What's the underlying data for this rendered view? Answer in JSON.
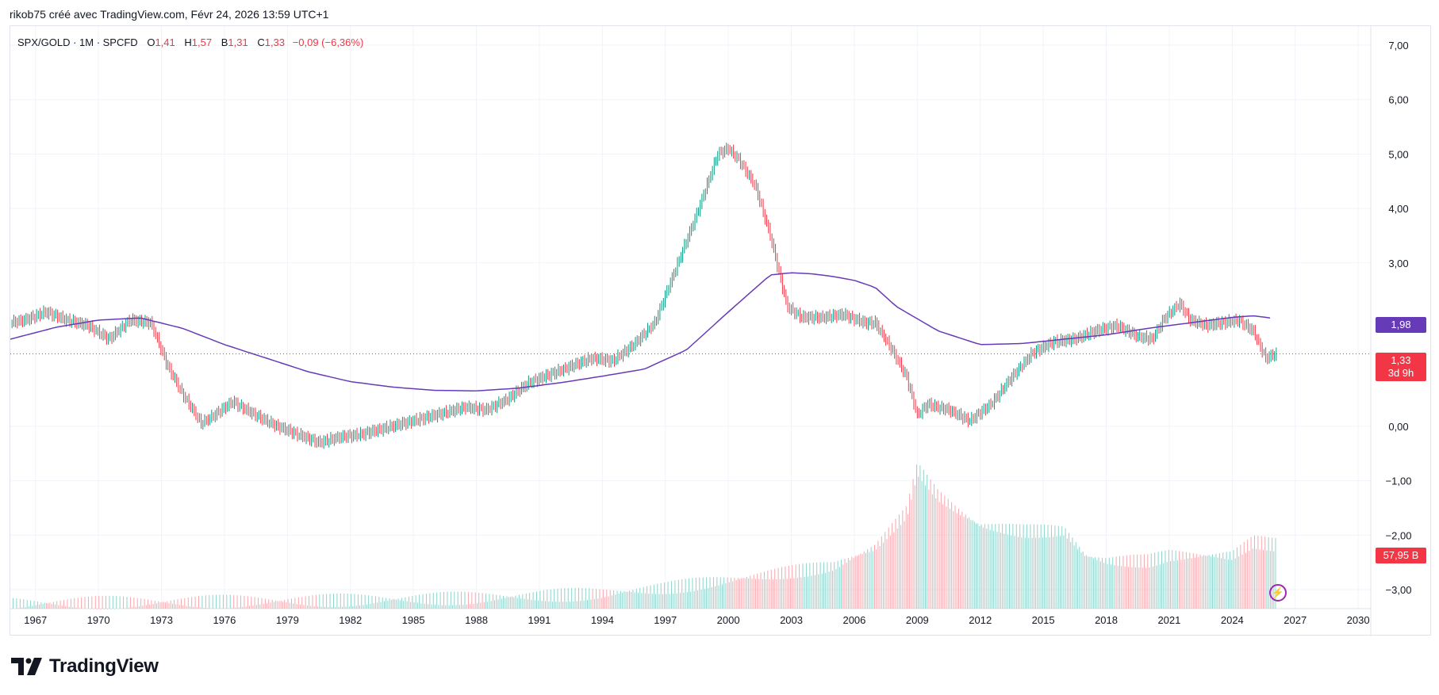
{
  "header": {
    "attribution": "rikob75 créé avec TradingView.com, Févr 24, 2026 13:59 UTC+1"
  },
  "legend": {
    "symbol": "SPX/GOLD · 1M · SPCFD",
    "o_label": "O",
    "o_value": "1,41",
    "h_label": "H",
    "h_value": "1,57",
    "l_label": "B",
    "l_value": "1,31",
    "c_label": "C",
    "c_value": "1,33",
    "change": "−0,09 (−6,36%)"
  },
  "tags": {
    "ma_value": "1,98",
    "price_value": "1,33",
    "countdown": "3d 9h",
    "volume_value": "57,95 B"
  },
  "brand": {
    "name": "TradingView"
  },
  "colors": {
    "up": "#089981",
    "down": "#f23645",
    "ma": "#673ab7",
    "vol_up": "#8fd3cb",
    "vol_down": "#f7a7ad",
    "grid": "#f0f3fa",
    "text": "#131722"
  },
  "chart_data": {
    "type": "line",
    "x_ticks": [
      "1967",
      "1970",
      "1973",
      "1976",
      "1979",
      "1982",
      "1985",
      "1988",
      "1991",
      "1994",
      "1997",
      "2000",
      "2003",
      "2006",
      "2009",
      "2012",
      "2015",
      "2018",
      "2021",
      "2024",
      "2027",
      "2030"
    ],
    "y_ticks": [
      "7,00",
      "6,00",
      "5,00",
      "4,00",
      "3,00",
      "0,00",
      "−1,00",
      "−2,00",
      "−3,00"
    ],
    "xlim": [
      1965.8,
      2030.6
    ],
    "ylim": [
      -3.35,
      7.35
    ],
    "series": [
      {
        "name": "SPX/GOLD",
        "x": [
          1965.8,
          1966.5,
          1967.5,
          1968.5,
          1969.5,
          1970.5,
          1971.5,
          1972.5,
          1973.3,
          1974.0,
          1974.9,
          1975.5,
          1976.4,
          1977.5,
          1978.5,
          1979.5,
          1980.5,
          1981.5,
          1982.5,
          1983.5,
          1984.5,
          1985.5,
          1986.5,
          1987.5,
          1988.5,
          1989.5,
          1990.5,
          1991.5,
          1992.5,
          1993.5,
          1994.5,
          1995.5,
          1996.5,
          1997.5,
          1998.5,
          1999.5,
          2000.0,
          2000.5,
          2001.3,
          2002.0,
          2002.8,
          2003.5,
          2004.5,
          2005.5,
          2006.5,
          2007.0,
          2007.8,
          2008.5,
          2009.0,
          2009.5,
          2010.5,
          2011.5,
          2012.5,
          2013.5,
          2014.5,
          2015.5,
          2016.5,
          2017.5,
          2018.5,
          2019.5,
          2020.2,
          2020.8,
          2021.5,
          2022.0,
          2022.8,
          2023.5,
          2024.3,
          2025.0,
          2025.6,
          2026.1
        ],
        "y": [
          1.9,
          1.95,
          2.1,
          1.95,
          1.85,
          1.6,
          1.95,
          1.9,
          1.1,
          0.6,
          0.05,
          0.2,
          0.45,
          0.2,
          0.0,
          -0.15,
          -0.3,
          -0.2,
          -0.15,
          -0.05,
          0.05,
          0.15,
          0.25,
          0.35,
          0.3,
          0.5,
          0.8,
          0.95,
          1.1,
          1.25,
          1.2,
          1.5,
          1.9,
          2.9,
          3.9,
          5.0,
          5.1,
          4.9,
          4.4,
          3.5,
          2.2,
          2.0,
          2.0,
          2.05,
          1.9,
          1.9,
          1.4,
          0.9,
          0.2,
          0.4,
          0.3,
          0.1,
          0.4,
          0.9,
          1.35,
          1.55,
          1.6,
          1.75,
          1.85,
          1.65,
          1.6,
          2.0,
          2.25,
          1.95,
          1.85,
          1.9,
          1.95,
          1.75,
          1.25,
          1.33
        ]
      },
      {
        "name": "MA",
        "x": [
          1965.8,
          1968,
          1970,
          1972,
          1974,
          1976,
          1978,
          1980,
          1982,
          1984,
          1986,
          1988,
          1990,
          1992,
          1994,
          1996,
          1998,
          2000,
          2002,
          2003,
          2004,
          2005,
          2006,
          2007,
          2008,
          2010,
          2012,
          2014,
          2016,
          2018,
          2020,
          2022,
          2024,
          2025,
          2026
        ],
        "y": [
          1.6,
          1.82,
          1.95,
          1.99,
          1.8,
          1.5,
          1.25,
          1.0,
          0.82,
          0.72,
          0.66,
          0.65,
          0.7,
          0.8,
          0.92,
          1.05,
          1.4,
          2.1,
          2.78,
          2.82,
          2.8,
          2.75,
          2.68,
          2.55,
          2.2,
          1.75,
          1.5,
          1.52,
          1.6,
          1.68,
          1.8,
          1.9,
          2.0,
          2.03,
          1.98
        ]
      },
      {
        "name": "Volume",
        "x": [
          1965.8,
          1980,
          1988,
          1994,
          1997,
          2000,
          2003,
          2005,
          2007,
          2008.5,
          2009,
          2010,
          2011,
          2012,
          2014,
          2016,
          2017,
          2018,
          2020,
          2021,
          2022,
          2024,
          2025,
          2026
        ],
        "y": [
          -3.38,
          -3.33,
          -3.28,
          -3.2,
          -3.1,
          -2.95,
          -2.8,
          -2.7,
          -2.35,
          -1.7,
          -0.9,
          -1.4,
          -1.7,
          -1.95,
          -2.05,
          -2.05,
          -2.5,
          -2.6,
          -2.6,
          -2.5,
          -2.5,
          -2.5,
          -2.25,
          -2.3
        ]
      }
    ]
  }
}
